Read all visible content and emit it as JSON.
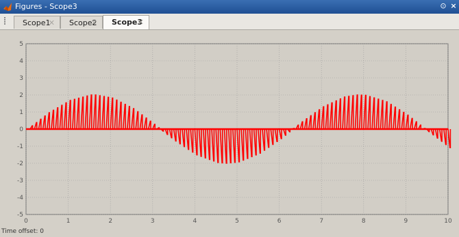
{
  "window": {
    "title": "Figures - Scope3",
    "menu_glyph": "⊙",
    "close_glyph": "×"
  },
  "tabs": [
    {
      "label": "Scope1",
      "active": false
    },
    {
      "label": "Scope2",
      "active": false
    },
    {
      "label": "Scope3",
      "active": true
    }
  ],
  "tab_close_glyph": "✕",
  "footer": {
    "time_offset_label": "Time offset:",
    "time_offset_value": "0"
  },
  "colors": {
    "plot_bg": "#d2cec6",
    "signal": "#ff0000",
    "grid": "#9a9a9a",
    "axis_text": "#555555"
  },
  "chart_data": {
    "type": "line",
    "xlim": [
      0,
      10
    ],
    "ylim": [
      -5,
      5
    ],
    "xticks": [
      "0",
      "1",
      "2",
      "3",
      "4",
      "5",
      "6",
      "7",
      "8",
      "9",
      "10"
    ],
    "yticks": [
      "5",
      "4",
      "3",
      "2",
      "1",
      "0",
      "-1",
      "-2",
      "-3",
      "-4",
      "-5"
    ],
    "grid": true,
    "series": [
      {
        "description_of_shape": "",
        "x": [
          0,
          0.5,
          1,
          1.5,
          1.6,
          2,
          2.5,
          3,
          3.14,
          3.5,
          4,
          4.5,
          4.7,
          5,
          5.5,
          6,
          6.28,
          6.5,
          7,
          7.5,
          7.8,
          8,
          8.5,
          9,
          9.42,
          9.5,
          10
        ],
        "values": [
          0,
          0.96,
          1.68,
          2.0,
          2.0,
          1.82,
          1.2,
          0.28,
          0,
          -0.7,
          -1.51,
          -1.96,
          -2.0,
          -1.92,
          -1.41,
          -0.56,
          0,
          0.43,
          1.31,
          1.88,
          2.0,
          1.98,
          1.6,
          0.82,
          0,
          -0.15,
          -1.09
        ]
      }
    ]
  }
}
